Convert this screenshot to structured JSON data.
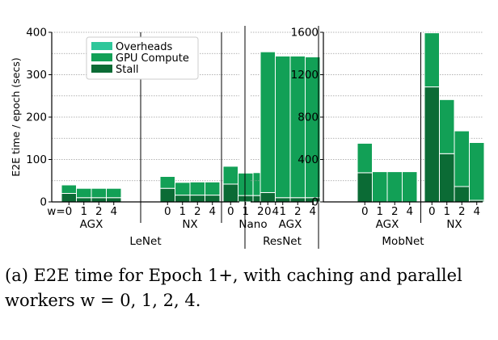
{
  "caption": {
    "line1": "(a) E2E time for Epoch 1+, with caching and parallel",
    "line2": "workers w = 0, 1, 2, 4."
  },
  "chart_data": {
    "type": "bar",
    "stacked": true,
    "ylabel": "E2E time / epoch (secs)",
    "x_prefix": "w=",
    "worker_ticks": [
      "0",
      "1",
      "2",
      "4"
    ],
    "colors": {
      "Stall": "#0b6b35",
      "GPU Compute": "#12a056",
      "Overheads": "#2ec79a"
    },
    "legend": {
      "entries": [
        "Overheads",
        "GPU Compute",
        "Stall"
      ],
      "placement": "top, LeNet panel"
    },
    "grid": true,
    "panels": [
      {
        "model": "LeNet",
        "ylim": [
          0,
          400
        ],
        "yticks": [
          0,
          100,
          200,
          300,
          400
        ],
        "devices": [
          {
            "name": "AGX",
            "stall": [
              20,
              10,
              10,
              10
            ],
            "compute": [
              20,
              22,
              22,
              22
            ],
            "overheads": [
              0,
              0,
              0,
              0
            ]
          },
          {
            "name": "NX",
            "stall": [
              32,
              16,
              16,
              16
            ],
            "compute": [
              28,
              30,
              31,
              31
            ],
            "overheads": [
              0,
              0,
              0,
              0
            ]
          },
          {
            "name": "Nano",
            "stall": [
              42,
              15,
              15,
              15
            ],
            "compute": [
              42,
              53,
              54,
              54
            ],
            "overheads": [
              0,
              0,
              0,
              0
            ]
          }
        ]
      },
      {
        "model": "ResNet",
        "ylim": [
          0,
          400
        ],
        "yticks": [],
        "devices": [
          {
            "name": "AGX",
            "stall": [
              22,
              10,
              10,
              10
            ],
            "compute": [
              332,
              334,
              334,
              332
            ],
            "overheads": [
              0,
              0,
              0,
              0
            ]
          }
        ]
      },
      {
        "model": "MobNet",
        "ylim": [
          0,
          1600
        ],
        "yticks": [
          0,
          400,
          800,
          1200,
          1600
        ],
        "devices": [
          {
            "name": "AGX",
            "stall": [
              275,
              0,
              0,
              0
            ],
            "compute": [
              278,
              285,
              285,
              285
            ],
            "overheads": [
              0,
              0,
              0,
              0
            ]
          },
          {
            "name": "NX",
            "stall": [
              1085,
              455,
              145,
              15
            ],
            "compute": [
              510,
              510,
              525,
              545
            ],
            "overheads": [
              0,
              0,
              0,
              0
            ]
          }
        ]
      }
    ]
  }
}
